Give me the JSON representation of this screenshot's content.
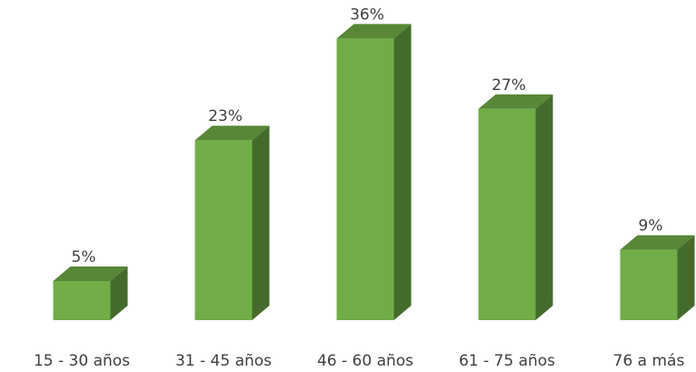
{
  "chart_data": {
    "type": "bar3d",
    "categories": [
      "15 - 30 años",
      "31 - 45 años",
      "46 - 60 años",
      "61 - 75 años",
      "76 a más"
    ],
    "values": [
      5,
      23,
      36,
      27,
      9
    ],
    "value_labels": [
      "5%",
      "23%",
      "36%",
      "27%",
      "9%"
    ],
    "color": "#70ad47"
  }
}
